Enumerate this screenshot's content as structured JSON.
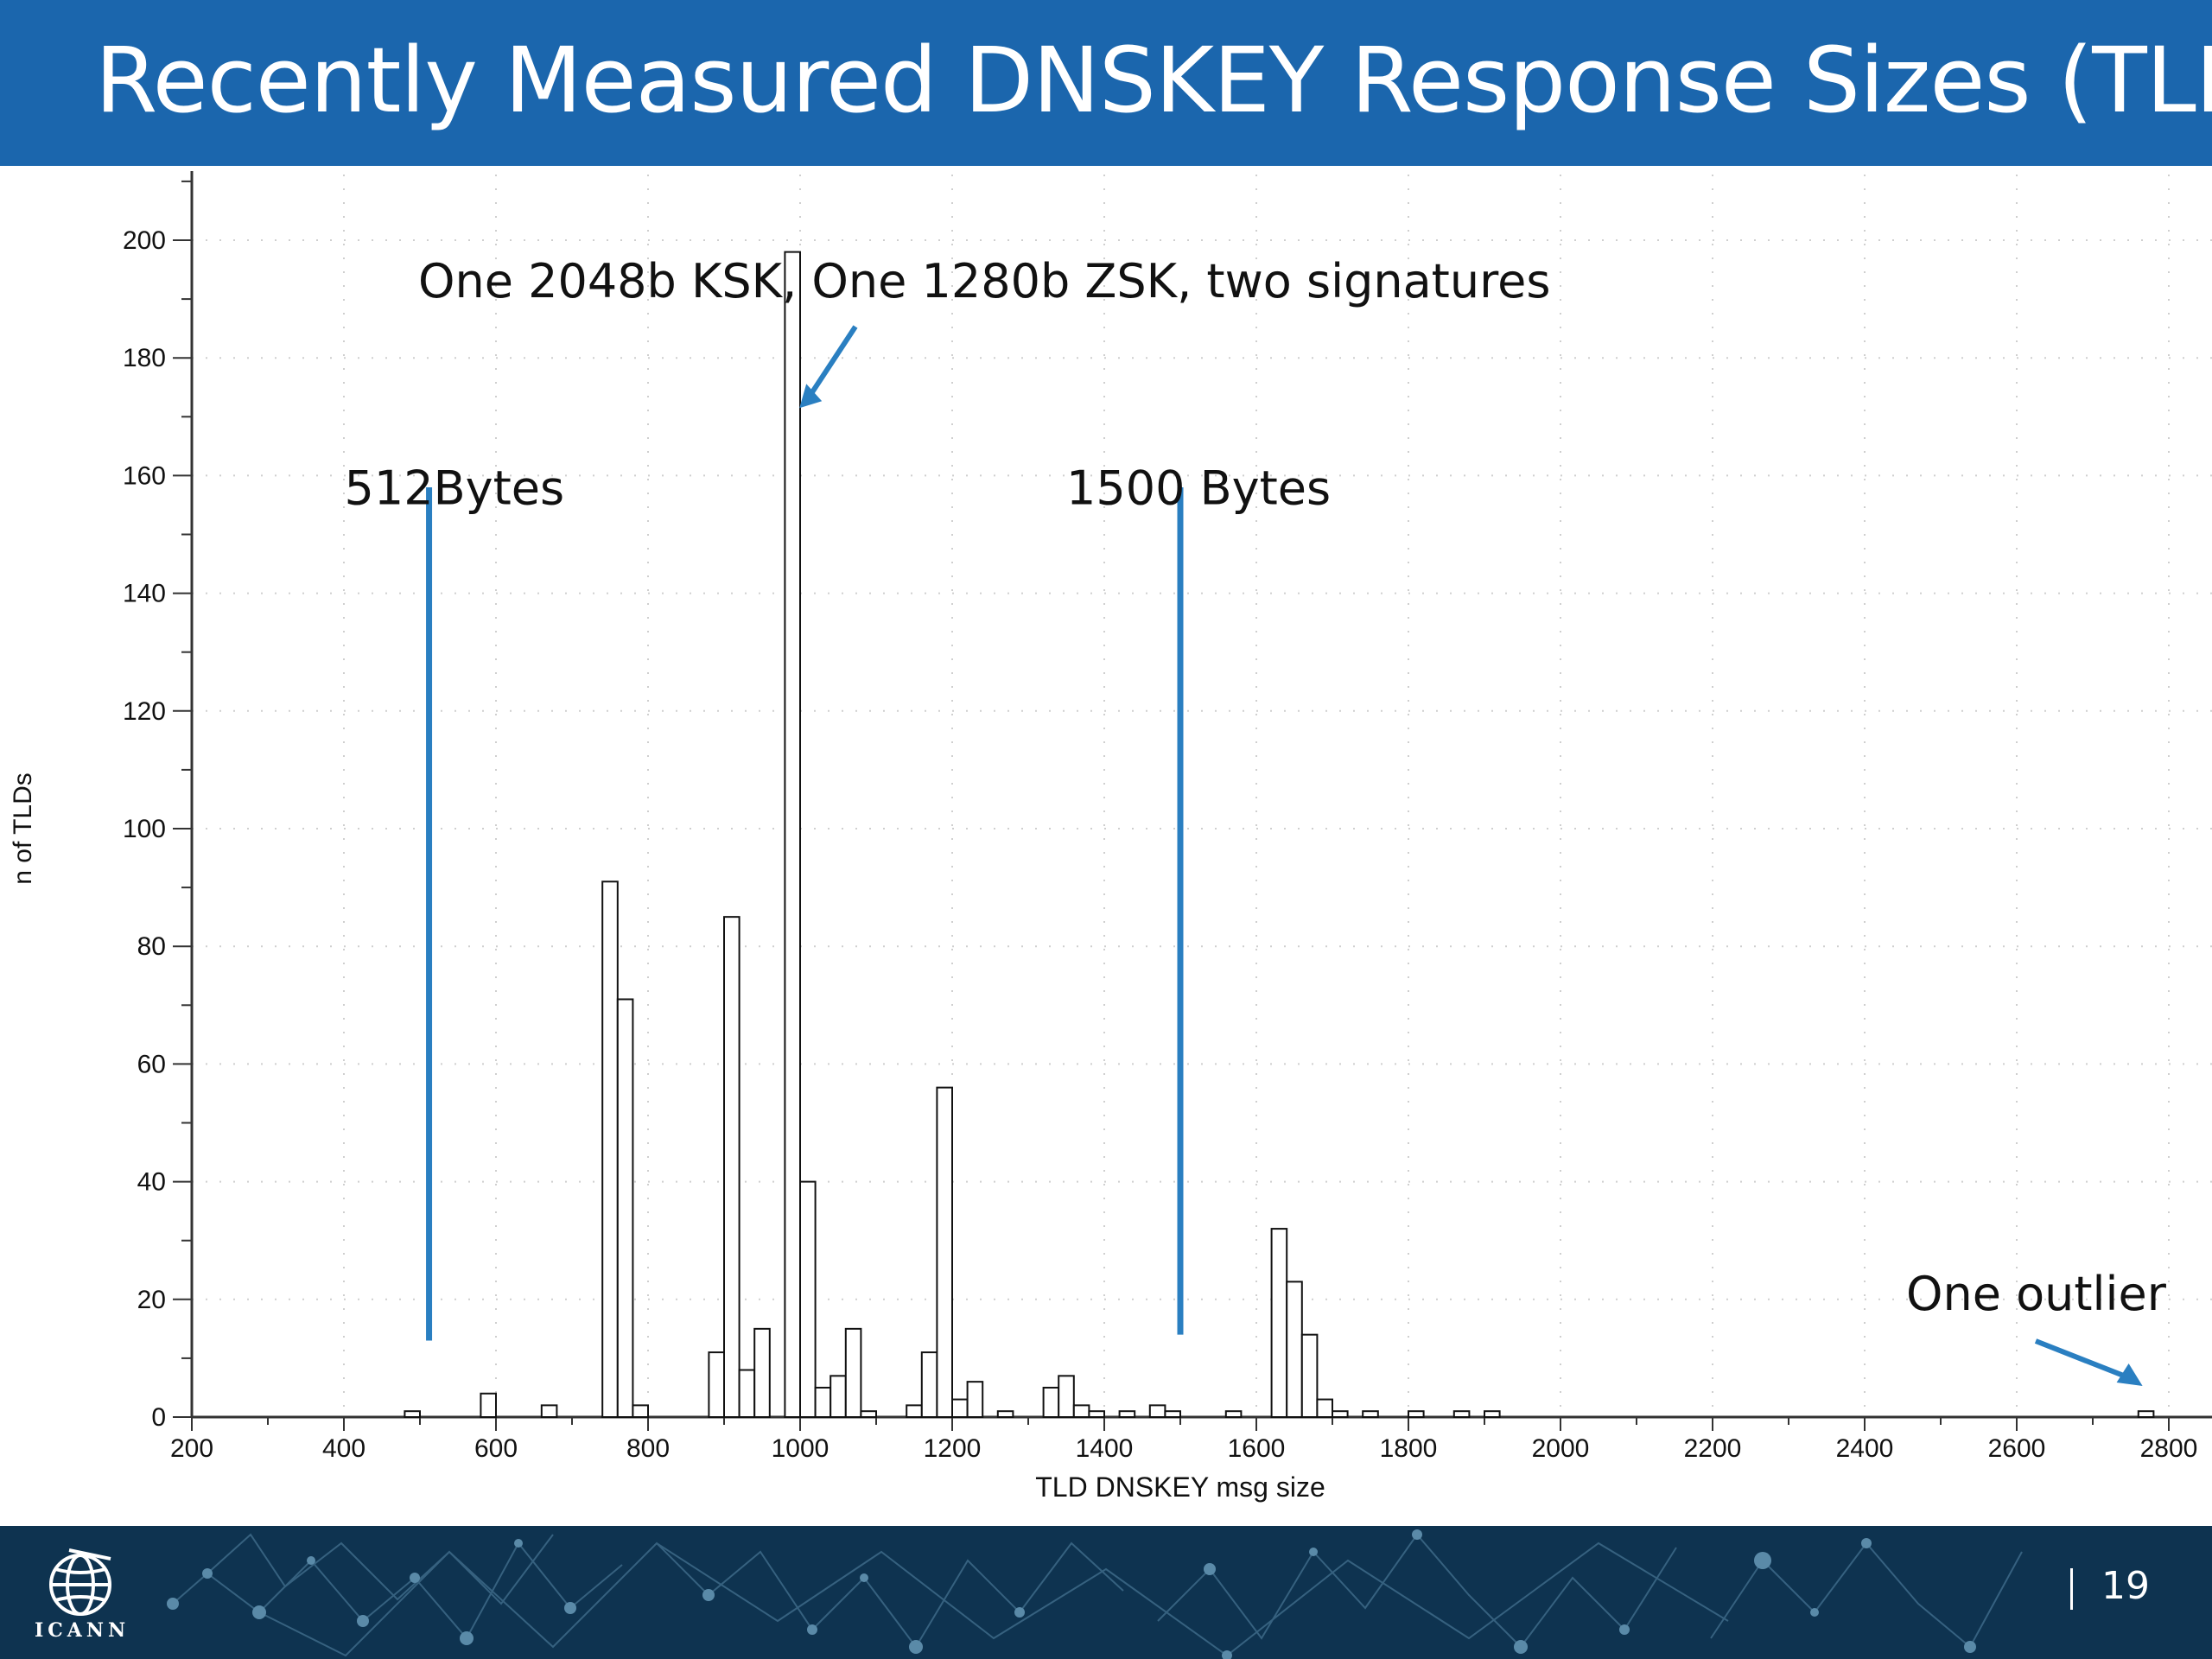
{
  "header": {
    "title": "Recently Measured DNSKEY Response Sizes (TLD)"
  },
  "footer": {
    "logo_text": "ICANN",
    "page_number": "19"
  },
  "colors": {
    "header_bg": "#1b66ad",
    "footer_bg": "#0e3350",
    "annotation_line": "#2a7fc1",
    "bar_stroke": "#111111"
  },
  "icons": {
    "logo": "globe-icon"
  },
  "chart_data": {
    "type": "bar",
    "xlabel": "TLD DNSKEY msg size",
    "ylabel": "n of TLDs",
    "xlim": [
      200,
      2800
    ],
    "ylim": [
      0,
      200
    ],
    "bin_width": 20,
    "grid": true,
    "x_ticks": [
      200,
      400,
      600,
      800,
      1000,
      1200,
      1400,
      1600,
      1800,
      2000,
      2200,
      2400,
      2600,
      2800
    ],
    "y_ticks": [
      0,
      20,
      40,
      60,
      80,
      100,
      120,
      140,
      160,
      180,
      200
    ],
    "bins": [
      {
        "x": 480,
        "value": 1
      },
      {
        "x": 580,
        "value": 4
      },
      {
        "x": 660,
        "value": 2
      },
      {
        "x": 740,
        "value": 91
      },
      {
        "x": 760,
        "value": 71
      },
      {
        "x": 780,
        "value": 2
      },
      {
        "x": 880,
        "value": 11
      },
      {
        "x": 900,
        "value": 85
      },
      {
        "x": 920,
        "value": 8
      },
      {
        "x": 940,
        "value": 15
      },
      {
        "x": 980,
        "value": 198
      },
      {
        "x": 1000,
        "value": 40
      },
      {
        "x": 1020,
        "value": 5
      },
      {
        "x": 1040,
        "value": 7
      },
      {
        "x": 1060,
        "value": 15
      },
      {
        "x": 1080,
        "value": 1
      },
      {
        "x": 1140,
        "value": 2
      },
      {
        "x": 1160,
        "value": 11
      },
      {
        "x": 1180,
        "value": 56
      },
      {
        "x": 1200,
        "value": 3
      },
      {
        "x": 1220,
        "value": 6
      },
      {
        "x": 1260,
        "value": 1
      },
      {
        "x": 1320,
        "value": 5
      },
      {
        "x": 1340,
        "value": 7
      },
      {
        "x": 1360,
        "value": 2
      },
      {
        "x": 1380,
        "value": 1
      },
      {
        "x": 1420,
        "value": 1
      },
      {
        "x": 1460,
        "value": 2
      },
      {
        "x": 1480,
        "value": 1
      },
      {
        "x": 1560,
        "value": 1
      },
      {
        "x": 1620,
        "value": 32
      },
      {
        "x": 1640,
        "value": 23
      },
      {
        "x": 1660,
        "value": 14
      },
      {
        "x": 1680,
        "value": 3
      },
      {
        "x": 1700,
        "value": 1
      },
      {
        "x": 1740,
        "value": 1
      },
      {
        "x": 1800,
        "value": 1
      },
      {
        "x": 1860,
        "value": 1
      },
      {
        "x": 1900,
        "value": 1
      },
      {
        "x": 2760,
        "value": 1
      }
    ],
    "reference_lines": [
      {
        "label": "512Bytes",
        "x": 512,
        "y_range": [
          13,
          158
        ]
      },
      {
        "label": "1500 Bytes",
        "x": 1500,
        "y_range": [
          14,
          158
        ]
      }
    ],
    "annotations": [
      {
        "text": "One 2048b KSK, One 1280b ZSK, two signatures",
        "points_to": {
          "x": 990,
          "y": 175
        }
      },
      {
        "text": "One outlier",
        "points_to": {
          "x": 2770,
          "y": 5
        }
      }
    ]
  }
}
